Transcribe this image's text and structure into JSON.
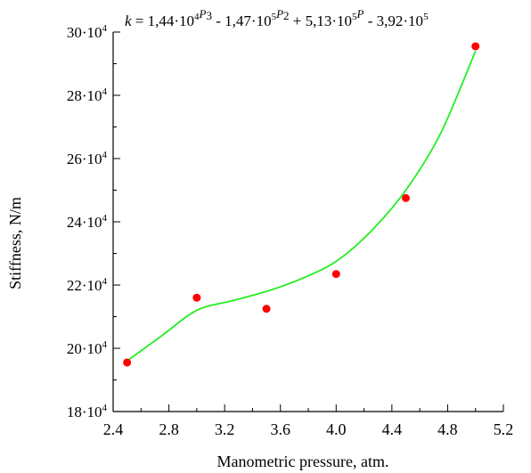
{
  "chart_data": {
    "type": "scatter",
    "equation": {
      "prefix": "k",
      "body": " = 1,44·10",
      "exp1": "4",
      "var1": "P",
      "pow1": "3",
      "t2": " - 1,47·10",
      "exp2": "5",
      "var2": "P",
      "pow2": "2",
      "t3": " + 5,13·10",
      "exp3": "5",
      "var3": "P",
      "t4": " - 3,92·10",
      "exp4": "5"
    },
    "xlabel": "Manometric pressure, atm.",
    "ylabel": "Stiffness, N/m",
    "xlim": [
      2.4,
      5.2
    ],
    "ylim": [
      180000,
      300000
    ],
    "x_ticks": [
      "2.4",
      "2.8",
      "3.2",
      "3.6",
      "4.0",
      "4.4",
      "4.8",
      "5.2"
    ],
    "y_ticks": [
      {
        "base": "18·10",
        "exp": "4"
      },
      {
        "base": "20·10",
        "exp": "4"
      },
      {
        "base": "22·10",
        "exp": "4"
      },
      {
        "base": "24·10",
        "exp": "4"
      },
      {
        "base": "26·10",
        "exp": "4"
      },
      {
        "base": "28·10",
        "exp": "4"
      },
      {
        "base": "30·10",
        "exp": "4"
      }
    ],
    "points": {
      "x": [
        2.5,
        3.0,
        3.5,
        4.0,
        4.5,
        5.0
      ],
      "y": [
        195500,
        216000,
        212500,
        223500,
        247500,
        295500
      ],
      "color": "#ff0000"
    },
    "fit_curve": {
      "x": [
        2.5,
        2.75,
        3.0,
        3.25,
        3.5,
        3.75,
        4.0,
        4.25,
        4.5,
        4.75,
        5.0
      ],
      "y": [
        196000,
        204000,
        212000,
        215000,
        218000,
        222000,
        227500,
        237000,
        250000,
        268000,
        294000
      ],
      "color": "#22ee22"
    },
    "grid": false
  }
}
